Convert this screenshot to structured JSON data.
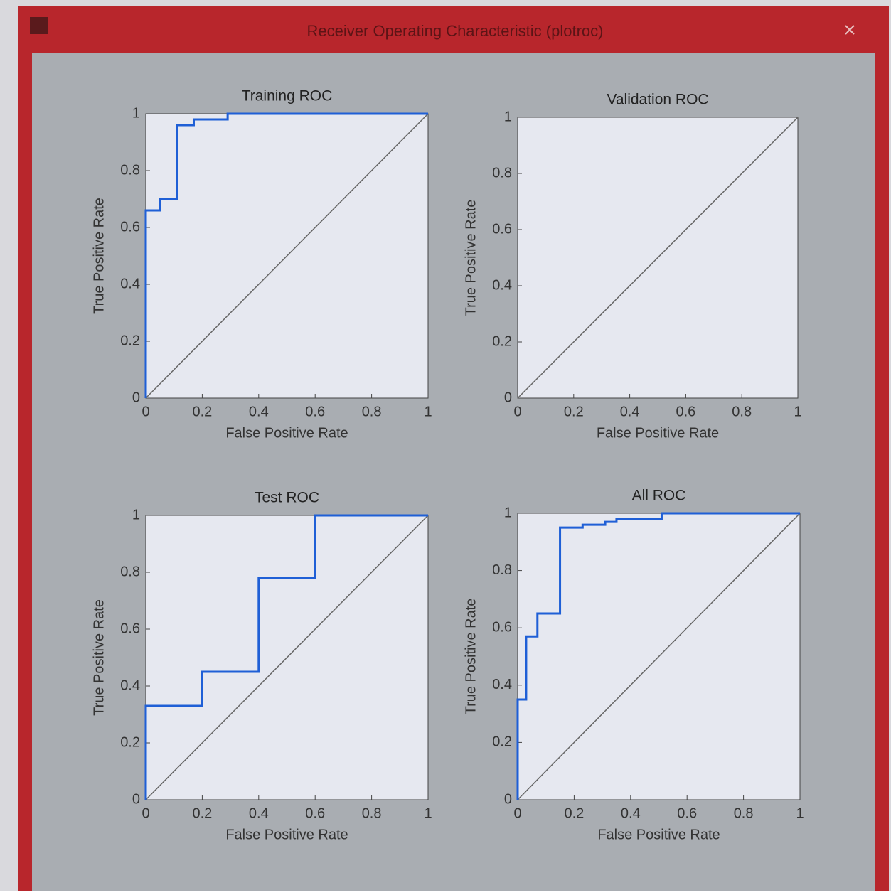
{
  "window": {
    "title": "Receiver Operating Characteristic (plotroc)"
  },
  "chart_data": [
    {
      "type": "line",
      "title": "Training ROC",
      "xlabel": "False Positive Rate",
      "ylabel": "True Positive Rate",
      "x": [
        0,
        0,
        0.05,
        0.05,
        0.11,
        0.11,
        0.17,
        0.17,
        0.29,
        0.29,
        1
      ],
      "series": [
        {
          "color": "#1f5fd6",
          "values": [
            0,
            0.66,
            0.66,
            0.7,
            0.7,
            0.96,
            0.96,
            0.98,
            0.98,
            1,
            1
          ]
        }
      ],
      "xlim": [
        0,
        1
      ],
      "ylim": [
        0,
        1
      ],
      "xticks": [
        0,
        0.2,
        0.4,
        0.6,
        0.8,
        1
      ],
      "yticks": [
        0,
        0.2,
        0.4,
        0.6,
        0.8,
        1
      ]
    },
    {
      "type": "line",
      "title": "Validation ROC",
      "xlabel": "False Positive Rate",
      "ylabel": "True Positive Rate",
      "x": [],
      "series": [],
      "xlim": [
        0,
        1
      ],
      "ylim": [
        0,
        1
      ],
      "xticks": [
        0,
        0.2,
        0.4,
        0.6,
        0.8,
        1
      ],
      "yticks": [
        0,
        0.2,
        0.4,
        0.6,
        0.8,
        1
      ]
    },
    {
      "type": "line",
      "title": "Test ROC",
      "xlabel": "False Positive Rate",
      "ylabel": "True Positive Rate",
      "x": [
        0,
        0,
        0.2,
        0.2,
        0.4,
        0.4,
        0.6,
        0.6,
        1
      ],
      "series": [
        {
          "color": "#1f5fd6",
          "values": [
            0,
            0.33,
            0.33,
            0.45,
            0.45,
            0.78,
            0.78,
            1,
            1
          ]
        }
      ],
      "xlim": [
        0,
        1
      ],
      "ylim": [
        0,
        1
      ],
      "xticks": [
        0,
        0.2,
        0.4,
        0.6,
        0.8,
        1
      ],
      "yticks": [
        0,
        0.2,
        0.4,
        0.6,
        0.8,
        1
      ]
    },
    {
      "type": "line",
      "title": "All ROC",
      "xlabel": "False Positive Rate",
      "ylabel": "True Positive Rate",
      "x": [
        0,
        0,
        0.03,
        0.03,
        0.07,
        0.07,
        0.15,
        0.15,
        0.23,
        0.23,
        0.31,
        0.31,
        0.35,
        0.35,
        0.51,
        0.51,
        1
      ],
      "series": [
        {
          "color": "#1f5fd6",
          "values": [
            0,
            0.35,
            0.35,
            0.57,
            0.57,
            0.65,
            0.65,
            0.95,
            0.95,
            0.96,
            0.96,
            0.97,
            0.97,
            0.98,
            0.98,
            1,
            1
          ]
        }
      ],
      "xlim": [
        0,
        1
      ],
      "ylim": [
        0,
        1
      ],
      "xticks": [
        0,
        0.2,
        0.4,
        0.6,
        0.8,
        1
      ],
      "yticks": [
        0,
        0.2,
        0.4,
        0.6,
        0.8,
        1
      ]
    }
  ]
}
